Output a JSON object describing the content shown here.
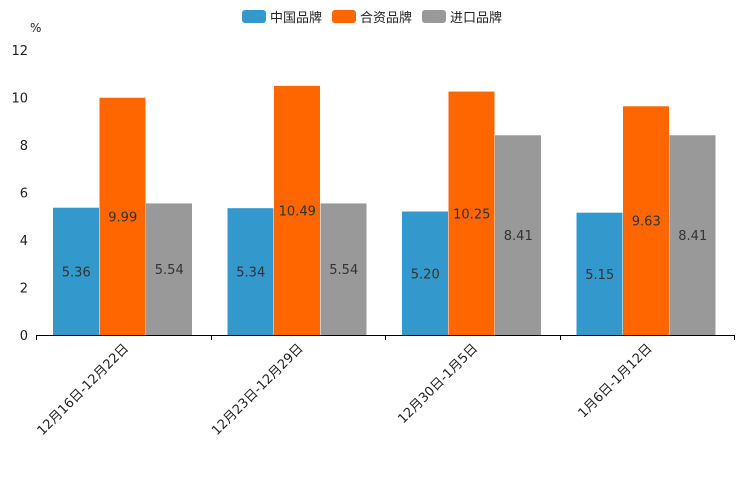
{
  "chart_data": {
    "type": "bar",
    "title": "",
    "ylabel": "%",
    "xlabel": "",
    "ylim": [
      0,
      12
    ],
    "yticks": [
      0,
      2,
      4,
      6,
      8,
      10,
      12
    ],
    "categories": [
      "12月16日-12月22日",
      "12月23日-12月29日",
      "12月30日-1月5日",
      "1月6日-1月12日"
    ],
    "series": [
      {
        "name": "中国品牌",
        "color": "#3399cc",
        "values": [
          5.36,
          5.34,
          5.2,
          5.15
        ],
        "labels": [
          "5.36",
          "5.34",
          "5.20",
          "5.15"
        ]
      },
      {
        "name": "合资品牌",
        "color": "#ff6600",
        "values": [
          9.99,
          10.49,
          10.25,
          9.63
        ],
        "labels": [
          "9.99",
          "10.49",
          "10.25",
          "9.63"
        ]
      },
      {
        "name": "进口品牌",
        "color": "#999999",
        "values": [
          5.54,
          5.54,
          8.41,
          8.41
        ],
        "labels": [
          "5.54",
          "5.54",
          "8.41",
          "8.41"
        ]
      }
    ],
    "legend_position": "top-center",
    "grid": false
  }
}
